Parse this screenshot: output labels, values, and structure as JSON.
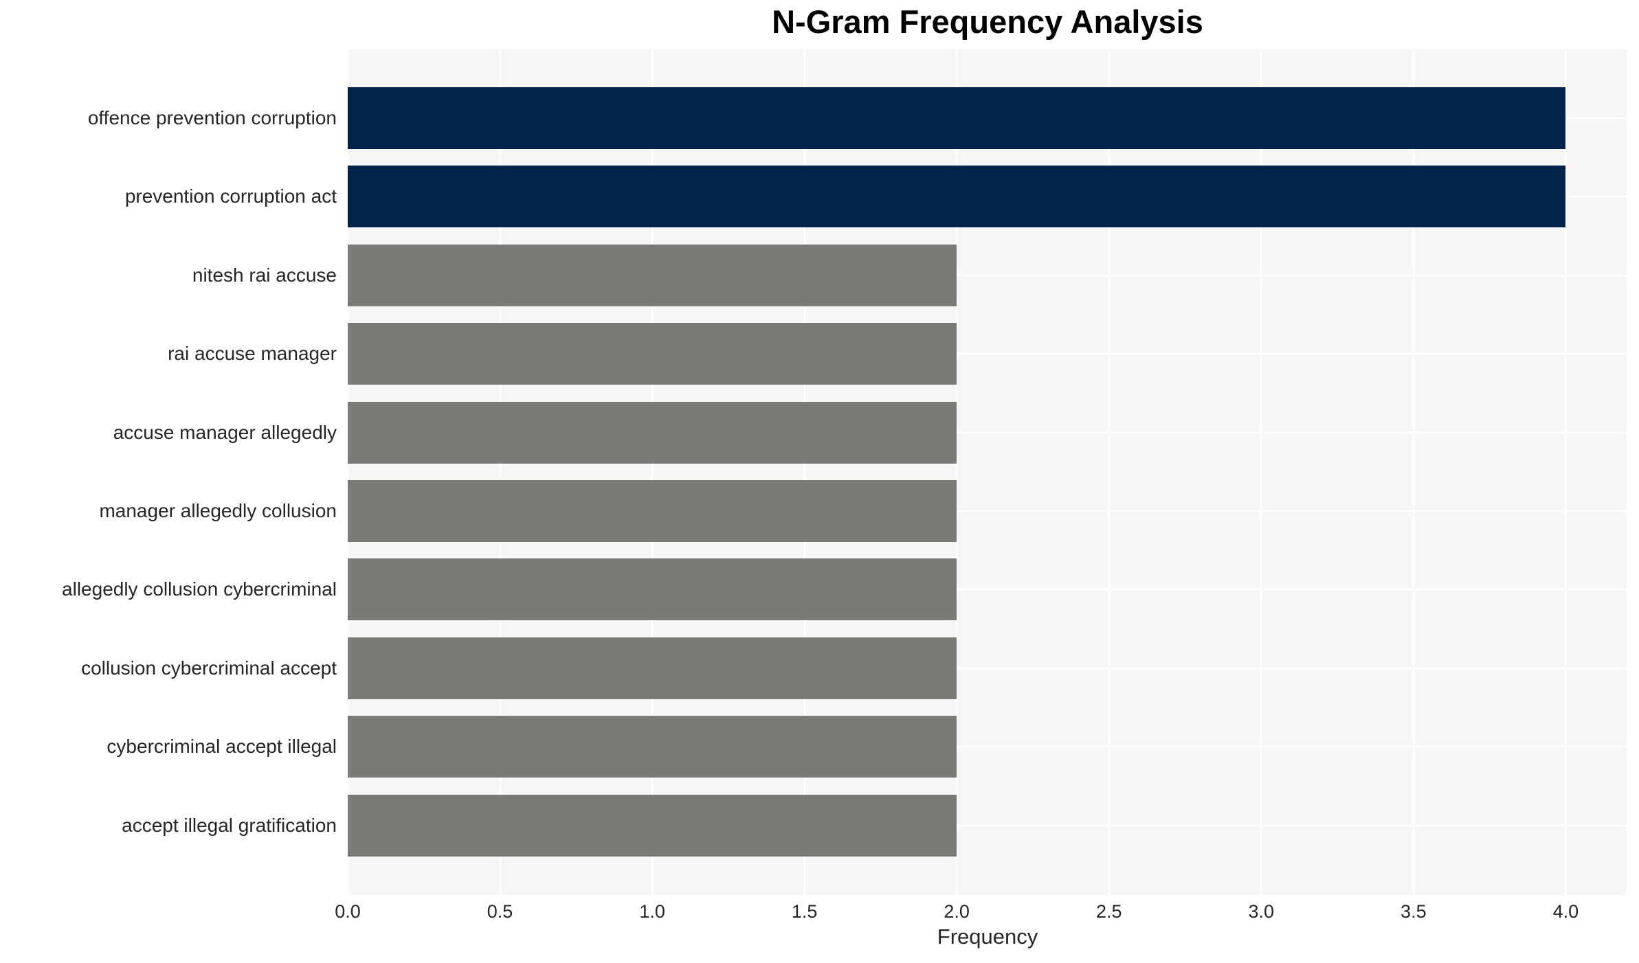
{
  "chart_data": {
    "type": "bar",
    "orientation": "horizontal",
    "title": "N-Gram Frequency Analysis",
    "xlabel": "Frequency",
    "ylabel": "",
    "categories": [
      "offence prevention corruption",
      "prevention corruption act",
      "nitesh rai accuse",
      "rai accuse manager",
      "accuse manager allegedly",
      "manager allegedly collusion",
      "allegedly collusion cybercriminal",
      "collusion cybercriminal accept",
      "cybercriminal accept illegal",
      "accept illegal gratification"
    ],
    "values": [
      4,
      4,
      2,
      2,
      2,
      2,
      2,
      2,
      2,
      2
    ],
    "bar_colors": [
      "#02234C",
      "#02234C",
      "#7B7A77",
      "#7B7A77",
      "#7B7A77",
      "#7B7A77",
      "#7B7A77",
      "#7B7A77",
      "#7B7A77",
      "#7B7A77"
    ],
    "xlim": [
      0,
      4.2
    ],
    "xticks": [
      0.0,
      0.5,
      1.0,
      1.5,
      2.0,
      2.5,
      3.0,
      3.5,
      4.0
    ],
    "xtick_labels": [
      "0.0",
      "0.5",
      "1.0",
      "1.5",
      "2.0",
      "2.5",
      "3.0",
      "3.5",
      "4.0"
    ],
    "grid": true,
    "legend": false,
    "colors": {
      "plot_background": "#F7F6F6",
      "figure_background": "#FFFFFF",
      "gridline": "#FFFFFF",
      "tick_text": "#262626",
      "title_text": "#000000",
      "highlight_bar": "#02234C",
      "default_bar": "#7B7A77"
    }
  }
}
